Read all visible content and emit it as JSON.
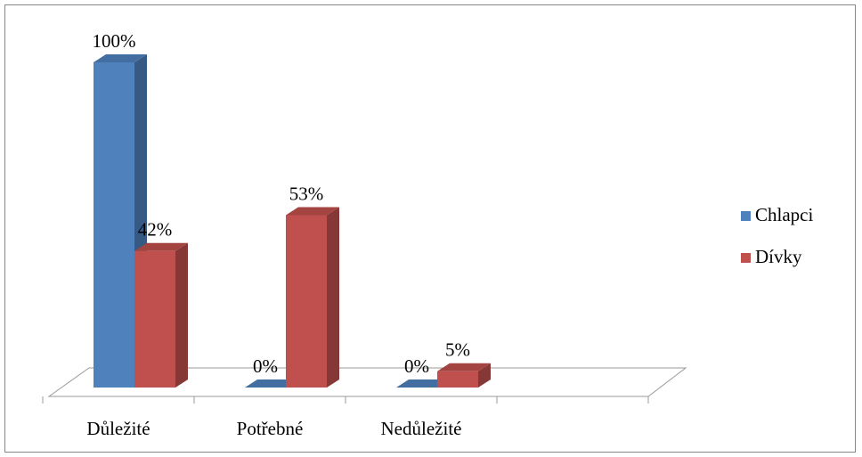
{
  "chart_data": {
    "type": "bar3d",
    "categories": [
      "Důležité",
      "Potřebné",
      "Nedůležité",
      null
    ],
    "series": [
      {
        "name": "Chlapci",
        "color": "#4f81bd",
        "values": [
          100,
          0,
          0,
          null
        ],
        "value_labels": [
          "100%",
          "0%",
          "0%",
          null
        ]
      },
      {
        "name": "Dívky",
        "color": "#c0504d",
        "values": [
          42,
          53,
          5,
          null
        ],
        "value_labels": [
          "42%",
          "53%",
          "5%",
          null
        ]
      }
    ],
    "ylim": [
      0,
      100
    ],
    "legend": "right"
  }
}
